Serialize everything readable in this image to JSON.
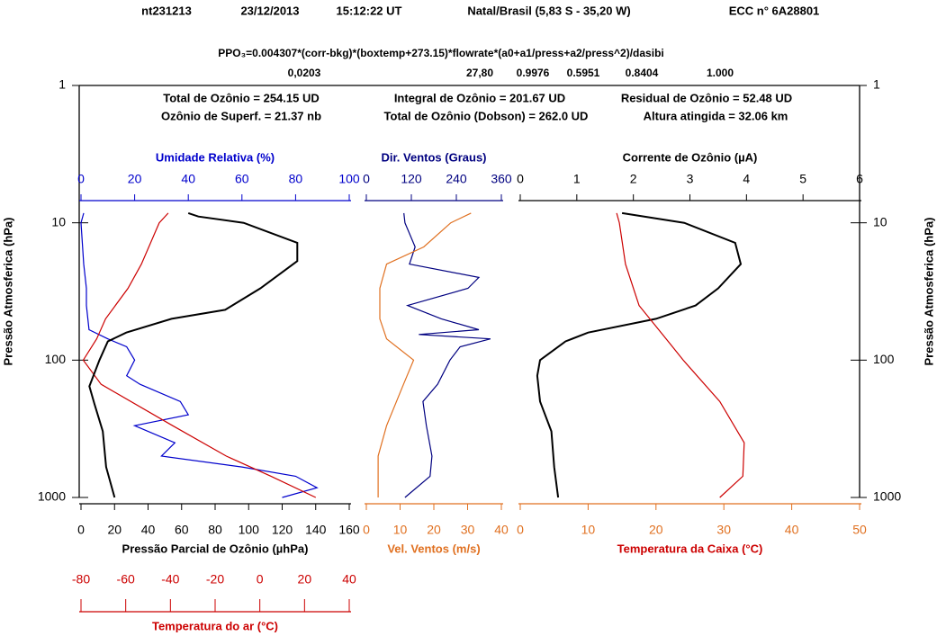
{
  "header": {
    "items": [
      "nt231213",
      "23/12/2013",
      "15:12:22 UT",
      "Natal/Brasil (5,83 S - 35,20 W)",
      "ECC n° 6A28801"
    ]
  },
  "formula": {
    "text": "PPO₃=0.004307*(corr-bkg)*(boxtemp+273.15)*flowrate*(a0+a1/press+a2/press^2)/dasibi",
    "coefficients": [
      "0,0203",
      "27,80",
      "0.9976",
      "0.5951",
      "0.8404",
      "1.000"
    ]
  },
  "summary": [
    "Total de Ozônio = 254.15  UD",
    "Integral de Ozônio = 201.67  UD",
    "Residual  de Ozônio = 52.48 UD",
    "Ozônio de Superf. = 21.37 nb",
    "Total de Ozônio (Dobson) = 262.0 UD",
    "Altura atingida = 32.06 km"
  ],
  "chart_data": [
    {
      "type": "line",
      "ylabel": "Pressão Atmosferica (hPa)",
      "ylim": [
        1000,
        1
      ],
      "yticks": [
        1,
        10,
        100,
        1000
      ],
      "log_y": true,
      "axes": [
        {
          "label": "Umidade Relativa (%)",
          "lim": [
            0,
            100
          ],
          "ticks": [
            0,
            20,
            40,
            60,
            80,
            100
          ],
          "color": "#0000cc",
          "position": "top"
        },
        {
          "label": "Pressão Parcial de Ozônio (µhPa)",
          "lim": [
            0,
            160
          ],
          "ticks": [
            0,
            20,
            40,
            60,
            80,
            100,
            120,
            140,
            160
          ],
          "color": "#000000",
          "position": "bottom"
        },
        {
          "label": "Temperatura do ar (°C)",
          "lim": [
            -80,
            40
          ],
          "ticks": [
            -80,
            -60,
            -40,
            -20,
            0,
            20,
            40
          ],
          "color": "#cc0000",
          "position": "bottom2"
        }
      ],
      "series": [
        {
          "color": "#0000cc",
          "axis": 0,
          "pressure": [
            1000,
            850,
            700,
            600,
            500,
            400,
            300,
            250,
            200,
            150,
            130,
            100,
            80,
            70,
            60,
            40,
            30,
            20,
            10,
            8.5
          ],
          "values": [
            75,
            88,
            80,
            60,
            30,
            35,
            20,
            40,
            37,
            22,
            17,
            20,
            17,
            10,
            3,
            2,
            2,
            1,
            0,
            1
          ]
        },
        {
          "color": "#cc0000",
          "axis": 2,
          "pressure": [
            1000,
            700,
            500,
            300,
            150,
            100,
            70,
            50,
            30,
            20,
            10,
            8.5
          ],
          "values": [
            25,
            5,
            -15,
            -39,
            -71,
            -79,
            -73,
            -69,
            -59,
            -53,
            -45,
            -41
          ]
        },
        {
          "color": "#000000",
          "axis": 1,
          "pressure": [
            1000,
            600,
            330,
            208,
            155,
            100,
            73,
            63,
            50,
            43,
            30,
            19,
            14,
            10,
            9,
            8.5
          ],
          "values": [
            20,
            15,
            13,
            8,
            5,
            11,
            16,
            27,
            54,
            86,
            107,
            129,
            129,
            97,
            70,
            64
          ]
        }
      ]
    },
    {
      "type": "line",
      "ylim": [
        1000,
        1
      ],
      "log_y": true,
      "axes": [
        {
          "label": "Dir. Ventos (Graus)",
          "lim": [
            0,
            360
          ],
          "ticks": [
            0,
            120,
            240,
            360
          ],
          "color": "#000080",
          "position": "top"
        },
        {
          "label": "Vel. Ventos (m/s)",
          "lim": [
            0,
            40
          ],
          "ticks": [
            0,
            10,
            20,
            30,
            40
          ],
          "color": "#e07020",
          "position": "bottom"
        }
      ],
      "series": [
        {
          "color": "#000080",
          "axis": 0,
          "pressure": [
            1000,
            700,
            500,
            300,
            200,
            150,
            100,
            80,
            70,
            65,
            60,
            50,
            40,
            30,
            25,
            20,
            15,
            10,
            8.5
          ],
          "values": [
            103,
            170,
            175,
            160,
            151,
            190,
            223,
            250,
            331,
            140,
            300,
            200,
            110,
            271,
            300,
            115,
            130,
            103,
            100
          ]
        },
        {
          "color": "#e07020",
          "axis": 1,
          "pressure": [
            1000,
            500,
            300,
            150,
            100,
            70,
            50,
            30,
            20,
            15,
            10,
            8.5
          ],
          "values": [
            3.5,
            3.5,
            6,
            11,
            14,
            6,
            4,
            4,
            6,
            17,
            25,
            31
          ]
        }
      ]
    },
    {
      "type": "line",
      "ylabel": "Pressão Atmosferica (hPa)",
      "ylim": [
        1000,
        1
      ],
      "yticks": [
        1,
        10,
        100,
        1000
      ],
      "log_y": true,
      "axes": [
        {
          "label": "Corrente de Ozônio (µA)",
          "lim": [
            0,
            6
          ],
          "ticks": [
            0,
            1,
            2,
            3,
            4,
            5,
            6
          ],
          "color": "#000000",
          "position": "top"
        },
        {
          "label": "Temperatura da Caixa (°C)",
          "lim": [
            0,
            50
          ],
          "ticks": [
            0,
            10,
            20,
            30,
            40,
            50
          ],
          "color": "#e07020",
          "label_color": "#cc0000",
          "position": "bottom"
        }
      ],
      "series": [
        {
          "color": "#000000",
          "axis": 0,
          "pressure": [
            1000,
            600,
            330,
            200,
            130,
            100,
            73,
            63,
            50,
            40,
            30,
            20,
            14,
            10,
            8.5
          ],
          "values": [
            0.67,
            0.6,
            0.55,
            0.35,
            0.3,
            0.35,
            0.8,
            1.2,
            2.4,
            3.1,
            3.5,
            3.9,
            3.8,
            2.9,
            1.8
          ]
        },
        {
          "color": "#cc0000",
          "axis": 1,
          "pressure": [
            1000,
            700,
            400,
            200,
            100,
            70,
            40,
            20,
            10,
            8.5
          ],
          "values": [
            29.4,
            32.8,
            33,
            29.4,
            24,
            21.5,
            17.5,
            15.5,
            14.6,
            14.2
          ]
        }
      ]
    }
  ]
}
